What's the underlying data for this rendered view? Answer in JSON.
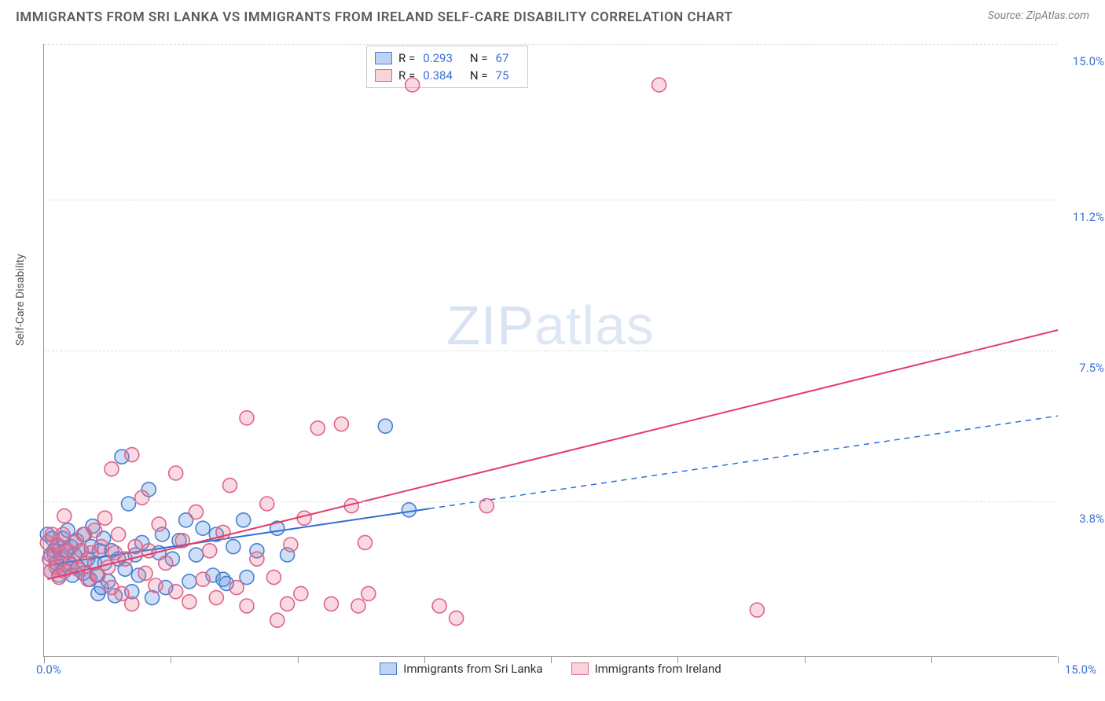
{
  "title": "IMMIGRANTS FROM SRI LANKA VS IMMIGRANTS FROM IRELAND SELF-CARE DISABILITY CORRELATION CHART",
  "source": "Source: ZipAtlas.com",
  "watermark_a": "ZIP",
  "watermark_b": "atlas",
  "ylabel": "Self-Care Disability",
  "chart": {
    "type": "scatter",
    "xlim": [
      0,
      15.0
    ],
    "ylim": [
      0,
      15.0
    ],
    "x_tick_positions": [
      0,
      1.875,
      3.75,
      5.625,
      7.5,
      9.375,
      11.25,
      13.125,
      15.0
    ],
    "x_label_min": "0.0%",
    "x_label_max": "15.0%",
    "y_ticks": [
      {
        "v": 3.8,
        "label": "3.8%"
      },
      {
        "v": 7.5,
        "label": "7.5%"
      },
      {
        "v": 11.2,
        "label": "11.2%"
      },
      {
        "v": 15.0,
        "label": "15.0%"
      }
    ],
    "grid_color": "#dcdcdc",
    "background_color": "#ffffff",
    "marker_radius": 9,
    "marker_stroke_width": 1.6,
    "line_width": 2,
    "series": [
      {
        "name": "Immigrants from Sri Lanka",
        "color_fill": "rgba(90,150,225,0.30)",
        "color_stroke": "#4a7fd0",
        "line_color": "#2d6fd6",
        "line_dash_after_x": 5.7,
        "trend": {
          "x0": 0.05,
          "y0": 2.25,
          "x1": 15.0,
          "y1": 5.9
        },
        "R": "0.293",
        "N": "67",
        "points": [
          [
            0.05,
            3.0
          ],
          [
            0.1,
            2.5
          ],
          [
            0.1,
            2.1
          ],
          [
            0.12,
            2.9
          ],
          [
            0.15,
            2.6
          ],
          [
            0.18,
            2.3
          ],
          [
            0.2,
            2.7
          ],
          [
            0.22,
            2.0
          ],
          [
            0.25,
            2.4
          ],
          [
            0.28,
            2.9
          ],
          [
            0.3,
            2.15
          ],
          [
            0.32,
            2.6
          ],
          [
            0.35,
            3.1
          ],
          [
            0.38,
            2.3
          ],
          [
            0.4,
            2.7
          ],
          [
            0.42,
            2.0
          ],
          [
            0.45,
            2.5
          ],
          [
            0.48,
            2.85
          ],
          [
            0.5,
            2.2
          ],
          [
            0.55,
            2.6
          ],
          [
            0.58,
            2.05
          ],
          [
            0.6,
            3.0
          ],
          [
            0.65,
            2.4
          ],
          [
            0.68,
            1.9
          ],
          [
            0.7,
            2.7
          ],
          [
            0.72,
            3.2
          ],
          [
            0.75,
            2.3
          ],
          [
            0.78,
            2.0
          ],
          [
            0.8,
            1.55
          ],
          [
            0.82,
            2.6
          ],
          [
            0.85,
            1.7
          ],
          [
            0.88,
            2.9
          ],
          [
            0.9,
            2.3
          ],
          [
            0.95,
            1.85
          ],
          [
            1.0,
            2.6
          ],
          [
            1.05,
            1.5
          ],
          [
            1.1,
            2.4
          ],
          [
            1.15,
            4.9
          ],
          [
            1.2,
            2.15
          ],
          [
            1.25,
            3.75
          ],
          [
            1.3,
            1.6
          ],
          [
            1.35,
            2.5
          ],
          [
            1.4,
            2.0
          ],
          [
            1.45,
            2.8
          ],
          [
            1.55,
            4.1
          ],
          [
            1.6,
            1.45
          ],
          [
            1.7,
            2.55
          ],
          [
            1.75,
            3.0
          ],
          [
            1.8,
            1.7
          ],
          [
            1.9,
            2.4
          ],
          [
            2.0,
            2.85
          ],
          [
            2.1,
            3.35
          ],
          [
            2.15,
            1.85
          ],
          [
            2.25,
            2.5
          ],
          [
            2.35,
            3.15
          ],
          [
            2.5,
            2.0
          ],
          [
            2.55,
            3.0
          ],
          [
            2.65,
            1.9
          ],
          [
            2.7,
            1.8
          ],
          [
            2.8,
            2.7
          ],
          [
            2.95,
            3.35
          ],
          [
            3.0,
            1.95
          ],
          [
            3.15,
            2.6
          ],
          [
            3.45,
            3.15
          ],
          [
            3.6,
            2.5
          ],
          [
            5.05,
            5.65
          ],
          [
            5.4,
            3.6
          ]
        ]
      },
      {
        "name": "Immigrants from Ireland",
        "color_fill": "rgba(235,120,150,0.28)",
        "color_stroke": "#e06488",
        "line_color": "#e23d6b",
        "line_dash_after_x": 15.0,
        "trend": {
          "x0": 0.05,
          "y0": 1.9,
          "x1": 15.0,
          "y1": 8.0
        },
        "R": "0.384",
        "N": "75",
        "points": [
          [
            0.05,
            2.8
          ],
          [
            0.08,
            2.4
          ],
          [
            0.1,
            2.1
          ],
          [
            0.12,
            3.0
          ],
          [
            0.15,
            2.5
          ],
          [
            0.18,
            2.2
          ],
          [
            0.2,
            2.75
          ],
          [
            0.22,
            1.95
          ],
          [
            0.25,
            2.55
          ],
          [
            0.28,
            3.0
          ],
          [
            0.3,
            2.1
          ],
          [
            0.3,
            3.45
          ],
          [
            0.35,
            2.6
          ],
          [
            0.4,
            2.25
          ],
          [
            0.45,
            2.8
          ],
          [
            0.5,
            2.15
          ],
          [
            0.55,
            2.6
          ],
          [
            0.58,
            3.0
          ],
          [
            0.6,
            2.3
          ],
          [
            0.65,
            1.9
          ],
          [
            0.7,
            2.55
          ],
          [
            0.75,
            3.1
          ],
          [
            0.8,
            2.0
          ],
          [
            0.85,
            2.7
          ],
          [
            0.9,
            3.4
          ],
          [
            0.95,
            2.2
          ],
          [
            1.0,
            4.6
          ],
          [
            1.0,
            1.7
          ],
          [
            1.05,
            2.55
          ],
          [
            1.1,
            3.0
          ],
          [
            1.15,
            1.55
          ],
          [
            1.2,
            2.4
          ],
          [
            1.3,
            4.95
          ],
          [
            1.3,
            1.3
          ],
          [
            1.35,
            2.7
          ],
          [
            1.45,
            3.9
          ],
          [
            1.5,
            2.05
          ],
          [
            1.55,
            2.6
          ],
          [
            1.65,
            1.75
          ],
          [
            1.7,
            3.25
          ],
          [
            1.8,
            2.3
          ],
          [
            1.95,
            4.5
          ],
          [
            1.95,
            1.6
          ],
          [
            2.05,
            2.85
          ],
          [
            2.15,
            1.35
          ],
          [
            2.25,
            3.55
          ],
          [
            2.35,
            1.9
          ],
          [
            2.45,
            2.6
          ],
          [
            2.55,
            1.45
          ],
          [
            2.65,
            3.05
          ],
          [
            2.75,
            4.2
          ],
          [
            2.85,
            1.7
          ],
          [
            3.0,
            5.85
          ],
          [
            3.0,
            1.25
          ],
          [
            3.15,
            2.4
          ],
          [
            3.3,
            3.75
          ],
          [
            3.4,
            1.95
          ],
          [
            3.6,
            1.3
          ],
          [
            3.65,
            2.75
          ],
          [
            3.8,
            1.55
          ],
          [
            3.85,
            3.4
          ],
          [
            4.05,
            5.6
          ],
          [
            4.25,
            1.3
          ],
          [
            4.4,
            5.7
          ],
          [
            4.55,
            3.7
          ],
          [
            4.65,
            1.25
          ],
          [
            4.75,
            2.8
          ],
          [
            4.8,
            1.55
          ],
          [
            5.45,
            14.0
          ],
          [
            5.85,
            1.25
          ],
          [
            6.55,
            3.7
          ],
          [
            9.1,
            14.0
          ],
          [
            10.55,
            1.15
          ],
          [
            6.1,
            0.95
          ],
          [
            3.45,
            0.9
          ]
        ]
      }
    ]
  },
  "legend_top": [
    {
      "swatch": "blue",
      "R_label": "R = ",
      "R": "0.293",
      "N_label": "N = ",
      "N": "67"
    },
    {
      "swatch": "pink",
      "R_label": "R = ",
      "R": "0.384",
      "N_label": "N = ",
      "N": "75"
    }
  ],
  "legend_bottom": [
    {
      "swatch": "blue",
      "label": "Immigrants from Sri Lanka"
    },
    {
      "swatch": "pink",
      "label": "Immigrants from Ireland"
    }
  ]
}
